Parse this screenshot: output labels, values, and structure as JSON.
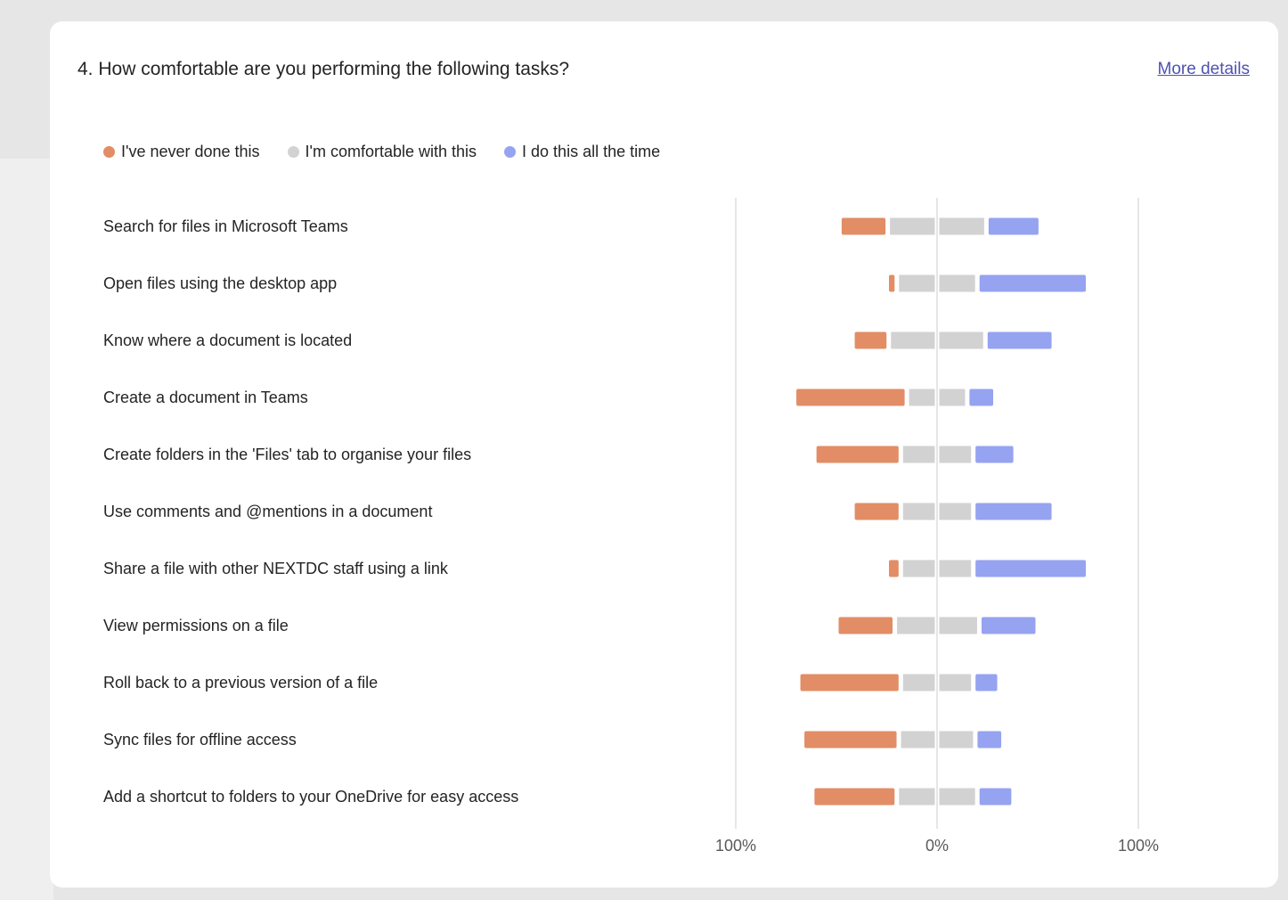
{
  "question": {
    "title": "4. How comfortable are you performing the following tasks?",
    "more_details": "More details"
  },
  "legend": [
    {
      "label": "I've never done this",
      "color": "#e28d65"
    },
    {
      "label": "I'm comfortable with this",
      "color": "#d2d2d2"
    },
    {
      "label": "I do this all the time",
      "color": "#96a3f0"
    }
  ],
  "chart_data": {
    "type": "bar",
    "orientation": "horizontal-diverging",
    "categories": [
      "Search for files in Microsoft Teams",
      "Open files using the desktop app",
      "Know where a document is located",
      "Create a document in Teams",
      "Create folders in the 'Files' tab to organise your files",
      "Use comments and @mentions in a document",
      "Share a file with other NEXTDC staff using a link",
      "View permissions on a file",
      "Roll back to a previous version of a file",
      "Sync files for offline access",
      "Add a shortcut to folders to your OneDrive for easy access"
    ],
    "series": [
      {
        "name": "I've never done this",
        "color": "#e28d65",
        "values": [
          24,
          5,
          18,
          56,
          43,
          24,
          7,
          29,
          51,
          48,
          42
        ]
      },
      {
        "name": "I'm comfortable with this",
        "color": "#d2d2d2",
        "values": [
          49,
          40,
          48,
          30,
          36,
          36,
          36,
          42,
          36,
          38,
          40
        ]
      },
      {
        "name": "I do this all the time",
        "color": "#96a3f0",
        "values": [
          27,
          55,
          34,
          14,
          21,
          40,
          57,
          29,
          13,
          14,
          18
        ]
      }
    ],
    "x_ticks": [
      "100%",
      "0%",
      "100%"
    ],
    "xlim": [
      -100,
      100
    ],
    "grid": true,
    "legend_position": "top-left"
  }
}
